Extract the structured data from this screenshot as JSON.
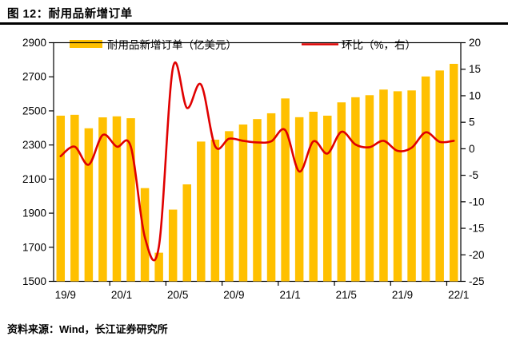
{
  "page": {
    "title": "图 12：耐用品新增订单",
    "source_note": "资料来源：Wind，长江证券研究所"
  },
  "colors": {
    "bar": "#FFC000",
    "line": "#E00000",
    "axis": "#000000",
    "text": "#000000",
    "title_rule": "#000000"
  },
  "chart_data": {
    "type": "bar",
    "title": "耐用品新增订单",
    "categories": [
      "19/9",
      "19/10",
      "19/11",
      "19/12",
      "20/1",
      "20/2",
      "20/3",
      "20/4",
      "20/5",
      "20/6",
      "20/7",
      "20/8",
      "20/9",
      "20/10",
      "20/11",
      "20/12",
      "21/1",
      "21/2",
      "21/3",
      "21/4",
      "21/5",
      "21/6",
      "21/7",
      "21/8",
      "21/9",
      "21/10",
      "21/11",
      "21/12",
      "22/1"
    ],
    "series": [
      {
        "name": "耐用品新增订单（亿美元）",
        "type": "bar",
        "axis": "left",
        "values": [
          2472,
          2477,
          2398,
          2462,
          2468,
          2457,
          2047,
          1668,
          1921,
          2069,
          2320,
          2331,
          2381,
          2420,
          2452,
          2486,
          2573,
          2463,
          2495,
          2472,
          2550,
          2580,
          2592,
          2625,
          2615,
          2620,
          2702,
          2737,
          2776
        ]
      },
      {
        "name": "环比（%，右）",
        "type": "line",
        "axis": "right",
        "values": [
          -1.4,
          0.4,
          -3.0,
          2.6,
          0.4,
          0.4,
          -16.7,
          -18.4,
          15.3,
          7.7,
          12.1,
          0.5,
          1.9,
          1.5,
          1.2,
          1.4,
          3.5,
          -4.3,
          1.4,
          -0.9,
          3.2,
          0.8,
          0.3,
          1.5,
          -0.4,
          0.2,
          3.1,
          1.3,
          1.5
        ]
      }
    ],
    "left_axis": {
      "min": 1500,
      "max": 2900,
      "step": 200,
      "tick_labels": [
        "2900",
        "2700",
        "2500",
        "2300",
        "2100",
        "1900",
        "1700",
        "1500"
      ]
    },
    "right_axis": {
      "min": -25,
      "max": 20,
      "step": 5,
      "tick_labels": [
        "20",
        "15",
        "10",
        "5",
        "0",
        "-5",
        "-10",
        "-15",
        "-20",
        "-25"
      ]
    },
    "x_tick_labels": [
      "19/9",
      "20/1",
      "20/5",
      "20/9",
      "21/1",
      "21/5",
      "21/9",
      "22/1"
    ],
    "x_label_every": 4,
    "legend_position": "top",
    "grid": false
  }
}
